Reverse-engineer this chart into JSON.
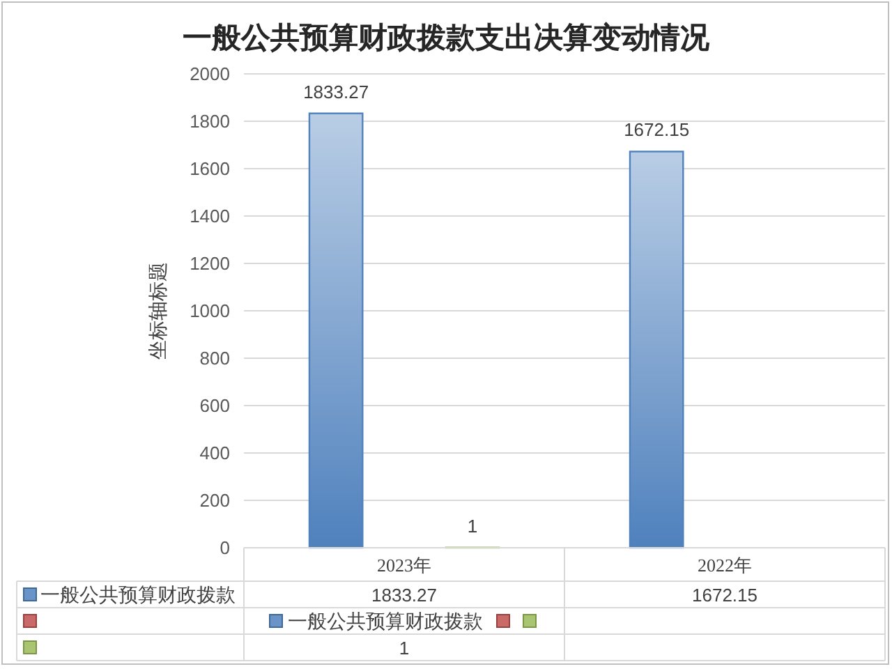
{
  "chart_data": {
    "type": "bar",
    "title": "一般公共预算财政拨款支出决算变动情况",
    "ylabel": "坐标轴标题",
    "categories": [
      "2023年",
      "2022年"
    ],
    "series": [
      {
        "name": "一般公共预算财政拨款",
        "color": "#4f81bd",
        "values": [
          1833.27,
          1672.15
        ]
      },
      {
        "color": "#c0504d",
        "values": [
          null,
          null
        ]
      },
      {
        "color": "#9bbb59",
        "values": [
          1,
          null
        ]
      }
    ],
    "annotations": [
      "1833.27",
      "1672.15",
      "1"
    ],
    "ylim": [
      0,
      2000
    ],
    "yticks": [
      0,
      200,
      400,
      600,
      800,
      1000,
      1200,
      1400,
      1600,
      1800,
      2000
    ],
    "grid": "y",
    "legend": "bottom",
    "data_labels": true
  }
}
